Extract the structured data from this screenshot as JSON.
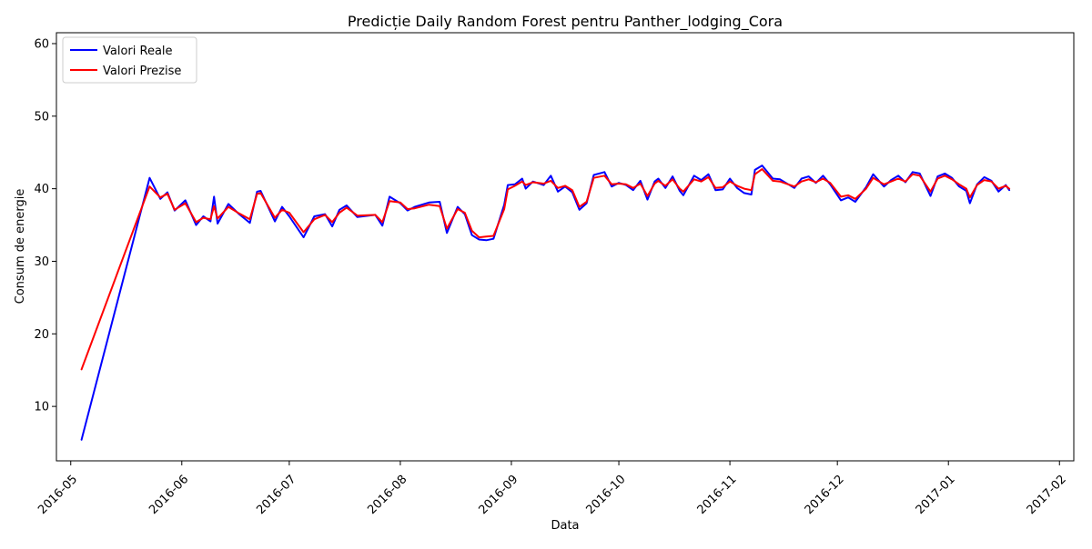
{
  "chart_data": {
    "type": "line",
    "title": "Predicție Daily Random Forest pentru Panther_lodging_Cora",
    "xlabel": "Data",
    "ylabel": "Consum de energie",
    "xlim": [
      "2016-04-27",
      "2017-02-05"
    ],
    "ylim": [
      2.5,
      61.5
    ],
    "x_ticks": [
      "2016-05",
      "2016-06",
      "2016-07",
      "2016-08",
      "2016-09",
      "2016-10",
      "2016-11",
      "2016-12",
      "2017-01",
      "2017-02"
    ],
    "y_ticks": [
      10,
      20,
      30,
      40,
      50,
      60
    ],
    "legend_position": "top-left",
    "grid": false,
    "series": [
      {
        "name": "Valori Reale",
        "color": "#0000ff",
        "points": [
          [
            "2016-05-04",
            5.4
          ],
          [
            "2016-05-23",
            41.5
          ],
          [
            "2016-05-26",
            38.6
          ],
          [
            "2016-05-28",
            39.5
          ],
          [
            "2016-05-30",
            37.0
          ],
          [
            "2016-06-02",
            38.4
          ],
          [
            "2016-06-05",
            35.0
          ],
          [
            "2016-06-07",
            36.2
          ],
          [
            "2016-06-09",
            35.5
          ],
          [
            "2016-06-10",
            38.9
          ],
          [
            "2016-06-11",
            35.2
          ],
          [
            "2016-06-14",
            37.9
          ],
          [
            "2016-06-17",
            36.5
          ],
          [
            "2016-06-20",
            35.3
          ],
          [
            "2016-06-22",
            39.6
          ],
          [
            "2016-06-23",
            39.7
          ],
          [
            "2016-06-27",
            35.5
          ],
          [
            "2016-06-29",
            37.5
          ],
          [
            "2016-07-01",
            36.2
          ],
          [
            "2016-07-05",
            33.3
          ],
          [
            "2016-07-08",
            36.2
          ],
          [
            "2016-07-11",
            36.5
          ],
          [
            "2016-07-13",
            34.8
          ],
          [
            "2016-07-15",
            37.1
          ],
          [
            "2016-07-17",
            37.7
          ],
          [
            "2016-07-20",
            36.1
          ],
          [
            "2016-07-25",
            36.4
          ],
          [
            "2016-07-27",
            34.9
          ],
          [
            "2016-07-29",
            38.9
          ],
          [
            "2016-08-01",
            38.0
          ],
          [
            "2016-08-03",
            37.0
          ],
          [
            "2016-08-05",
            37.5
          ],
          [
            "2016-08-09",
            38.1
          ],
          [
            "2016-08-12",
            38.2
          ],
          [
            "2016-08-14",
            33.9
          ],
          [
            "2016-08-17",
            37.5
          ],
          [
            "2016-08-19",
            36.5
          ],
          [
            "2016-08-21",
            33.6
          ],
          [
            "2016-08-23",
            33.0
          ],
          [
            "2016-08-25",
            32.9
          ],
          [
            "2016-08-27",
            33.1
          ],
          [
            "2016-08-30",
            37.8
          ],
          [
            "2016-08-31",
            40.5
          ],
          [
            "2016-09-02",
            40.6
          ],
          [
            "2016-09-04",
            41.4
          ],
          [
            "2016-09-05",
            40.0
          ],
          [
            "2016-09-07",
            41.0
          ],
          [
            "2016-09-10",
            40.5
          ],
          [
            "2016-09-12",
            41.8
          ],
          [
            "2016-09-14",
            39.6
          ],
          [
            "2016-09-16",
            40.3
          ],
          [
            "2016-09-18",
            39.5
          ],
          [
            "2016-09-20",
            37.1
          ],
          [
            "2016-09-22",
            38.0
          ],
          [
            "2016-09-24",
            41.9
          ],
          [
            "2016-09-27",
            42.3
          ],
          [
            "2016-09-29",
            40.3
          ],
          [
            "2016-10-01",
            40.8
          ],
          [
            "2016-10-03",
            40.5
          ],
          [
            "2016-10-05",
            39.8
          ],
          [
            "2016-10-07",
            41.1
          ],
          [
            "2016-10-09",
            38.5
          ],
          [
            "2016-10-11",
            41.0
          ],
          [
            "2016-10-12",
            41.4
          ],
          [
            "2016-10-14",
            40.1
          ],
          [
            "2016-10-16",
            41.7
          ],
          [
            "2016-10-18",
            39.7
          ],
          [
            "2016-10-19",
            39.1
          ],
          [
            "2016-10-22",
            41.8
          ],
          [
            "2016-10-24",
            41.2
          ],
          [
            "2016-10-26",
            42.0
          ],
          [
            "2016-10-28",
            39.8
          ],
          [
            "2016-10-30",
            39.9
          ],
          [
            "2016-11-01",
            41.4
          ],
          [
            "2016-11-03",
            40.1
          ],
          [
            "2016-11-05",
            39.4
          ],
          [
            "2016-11-07",
            39.2
          ],
          [
            "2016-11-08",
            42.6
          ],
          [
            "2016-11-10",
            43.2
          ],
          [
            "2016-11-13",
            41.4
          ],
          [
            "2016-11-15",
            41.3
          ],
          [
            "2016-11-19",
            40.1
          ],
          [
            "2016-11-21",
            41.4
          ],
          [
            "2016-11-23",
            41.7
          ],
          [
            "2016-11-25",
            40.8
          ],
          [
            "2016-11-27",
            41.8
          ],
          [
            "2016-11-29",
            40.6
          ],
          [
            "2016-12-02",
            38.4
          ],
          [
            "2016-12-04",
            38.8
          ],
          [
            "2016-12-06",
            38.2
          ],
          [
            "2016-12-09",
            40.2
          ],
          [
            "2016-12-11",
            42.0
          ],
          [
            "2016-12-14",
            40.3
          ],
          [
            "2016-12-16",
            41.2
          ],
          [
            "2016-12-18",
            41.8
          ],
          [
            "2016-12-20",
            40.9
          ],
          [
            "2016-12-22",
            42.3
          ],
          [
            "2016-12-24",
            42.1
          ],
          [
            "2016-12-27",
            39.0
          ],
          [
            "2016-12-29",
            41.7
          ],
          [
            "2016-12-31",
            42.1
          ],
          [
            "2017-01-02",
            41.5
          ],
          [
            "2017-01-04",
            40.3
          ],
          [
            "2017-01-06",
            39.7
          ],
          [
            "2017-01-07",
            38.0
          ],
          [
            "2017-01-09",
            40.6
          ],
          [
            "2017-01-11",
            41.6
          ],
          [
            "2017-01-13",
            41.1
          ],
          [
            "2017-01-15",
            39.6
          ],
          [
            "2017-01-17",
            40.5
          ],
          [
            "2017-01-18",
            39.8
          ]
        ]
      },
      {
        "name": "Valori Prezise",
        "color": "#ff0000",
        "points": [
          [
            "2016-05-04",
            15.1
          ],
          [
            "2016-05-23",
            40.3
          ],
          [
            "2016-05-26",
            38.8
          ],
          [
            "2016-05-28",
            39.3
          ],
          [
            "2016-05-30",
            37.1
          ],
          [
            "2016-06-02",
            38.0
          ],
          [
            "2016-06-05",
            35.4
          ],
          [
            "2016-06-07",
            36.0
          ],
          [
            "2016-06-09",
            35.8
          ],
          [
            "2016-06-10",
            37.6
          ],
          [
            "2016-06-11",
            35.9
          ],
          [
            "2016-06-14",
            37.5
          ],
          [
            "2016-06-17",
            36.6
          ],
          [
            "2016-06-20",
            35.8
          ],
          [
            "2016-06-22",
            39.3
          ],
          [
            "2016-06-23",
            39.4
          ],
          [
            "2016-06-27",
            36.0
          ],
          [
            "2016-06-29",
            37.1
          ],
          [
            "2016-07-01",
            36.7
          ],
          [
            "2016-07-05",
            34.0
          ],
          [
            "2016-07-08",
            35.8
          ],
          [
            "2016-07-11",
            36.4
          ],
          [
            "2016-07-13",
            35.4
          ],
          [
            "2016-07-15",
            36.7
          ],
          [
            "2016-07-17",
            37.4
          ],
          [
            "2016-07-20",
            36.3
          ],
          [
            "2016-07-25",
            36.4
          ],
          [
            "2016-07-27",
            35.4
          ],
          [
            "2016-07-29",
            38.3
          ],
          [
            "2016-08-01",
            38.1
          ],
          [
            "2016-08-03",
            37.2
          ],
          [
            "2016-08-05",
            37.3
          ],
          [
            "2016-08-09",
            37.8
          ],
          [
            "2016-08-12",
            37.6
          ],
          [
            "2016-08-14",
            34.5
          ],
          [
            "2016-08-17",
            37.2
          ],
          [
            "2016-08-19",
            36.7
          ],
          [
            "2016-08-21",
            34.2
          ],
          [
            "2016-08-23",
            33.3
          ],
          [
            "2016-08-25",
            33.4
          ],
          [
            "2016-08-27",
            33.5
          ],
          [
            "2016-08-30",
            37.2
          ],
          [
            "2016-08-31",
            39.9
          ],
          [
            "2016-09-02",
            40.4
          ],
          [
            "2016-09-04",
            41.0
          ],
          [
            "2016-09-05",
            40.5
          ],
          [
            "2016-09-07",
            40.9
          ],
          [
            "2016-09-10",
            40.7
          ],
          [
            "2016-09-12",
            41.1
          ],
          [
            "2016-09-14",
            40.1
          ],
          [
            "2016-09-16",
            40.4
          ],
          [
            "2016-09-18",
            39.8
          ],
          [
            "2016-09-20",
            37.5
          ],
          [
            "2016-09-22",
            38.2
          ],
          [
            "2016-09-24",
            41.5
          ],
          [
            "2016-09-27",
            41.8
          ],
          [
            "2016-09-29",
            40.6
          ],
          [
            "2016-10-01",
            40.7
          ],
          [
            "2016-10-03",
            40.6
          ],
          [
            "2016-10-05",
            40.1
          ],
          [
            "2016-10-07",
            40.7
          ],
          [
            "2016-10-09",
            39.0
          ],
          [
            "2016-10-11",
            40.7
          ],
          [
            "2016-10-12",
            41.1
          ],
          [
            "2016-10-14",
            40.4
          ],
          [
            "2016-10-16",
            41.3
          ],
          [
            "2016-10-18",
            40.0
          ],
          [
            "2016-10-19",
            39.6
          ],
          [
            "2016-10-22",
            41.3
          ],
          [
            "2016-10-24",
            41.0
          ],
          [
            "2016-10-26",
            41.6
          ],
          [
            "2016-10-28",
            40.1
          ],
          [
            "2016-10-30",
            40.2
          ],
          [
            "2016-11-01",
            41.0
          ],
          [
            "2016-11-03",
            40.4
          ],
          [
            "2016-11-05",
            40.0
          ],
          [
            "2016-11-07",
            39.8
          ],
          [
            "2016-11-08",
            42.0
          ],
          [
            "2016-11-10",
            42.7
          ],
          [
            "2016-11-13",
            41.1
          ],
          [
            "2016-11-15",
            41.0
          ],
          [
            "2016-11-19",
            40.3
          ],
          [
            "2016-11-21",
            41.0
          ],
          [
            "2016-11-23",
            41.3
          ],
          [
            "2016-11-25",
            40.9
          ],
          [
            "2016-11-27",
            41.4
          ],
          [
            "2016-11-29",
            40.8
          ],
          [
            "2016-12-02",
            38.9
          ],
          [
            "2016-12-04",
            39.1
          ],
          [
            "2016-12-06",
            38.6
          ],
          [
            "2016-12-09",
            40.0
          ],
          [
            "2016-12-11",
            41.5
          ],
          [
            "2016-12-14",
            40.6
          ],
          [
            "2016-12-16",
            41.0
          ],
          [
            "2016-12-18",
            41.4
          ],
          [
            "2016-12-20",
            41.0
          ],
          [
            "2016-12-22",
            42.0
          ],
          [
            "2016-12-24",
            41.8
          ],
          [
            "2016-12-27",
            39.6
          ],
          [
            "2016-12-29",
            41.4
          ],
          [
            "2016-12-31",
            41.8
          ],
          [
            "2017-01-02",
            41.3
          ],
          [
            "2017-01-04",
            40.6
          ],
          [
            "2017-01-06",
            40.0
          ],
          [
            "2017-01-07",
            38.8
          ],
          [
            "2017-01-09",
            40.5
          ],
          [
            "2017-01-11",
            41.2
          ],
          [
            "2017-01-13",
            41.0
          ],
          [
            "2017-01-15",
            40.0
          ],
          [
            "2017-01-17",
            40.4
          ],
          [
            "2017-01-18",
            40.0
          ]
        ]
      }
    ]
  }
}
